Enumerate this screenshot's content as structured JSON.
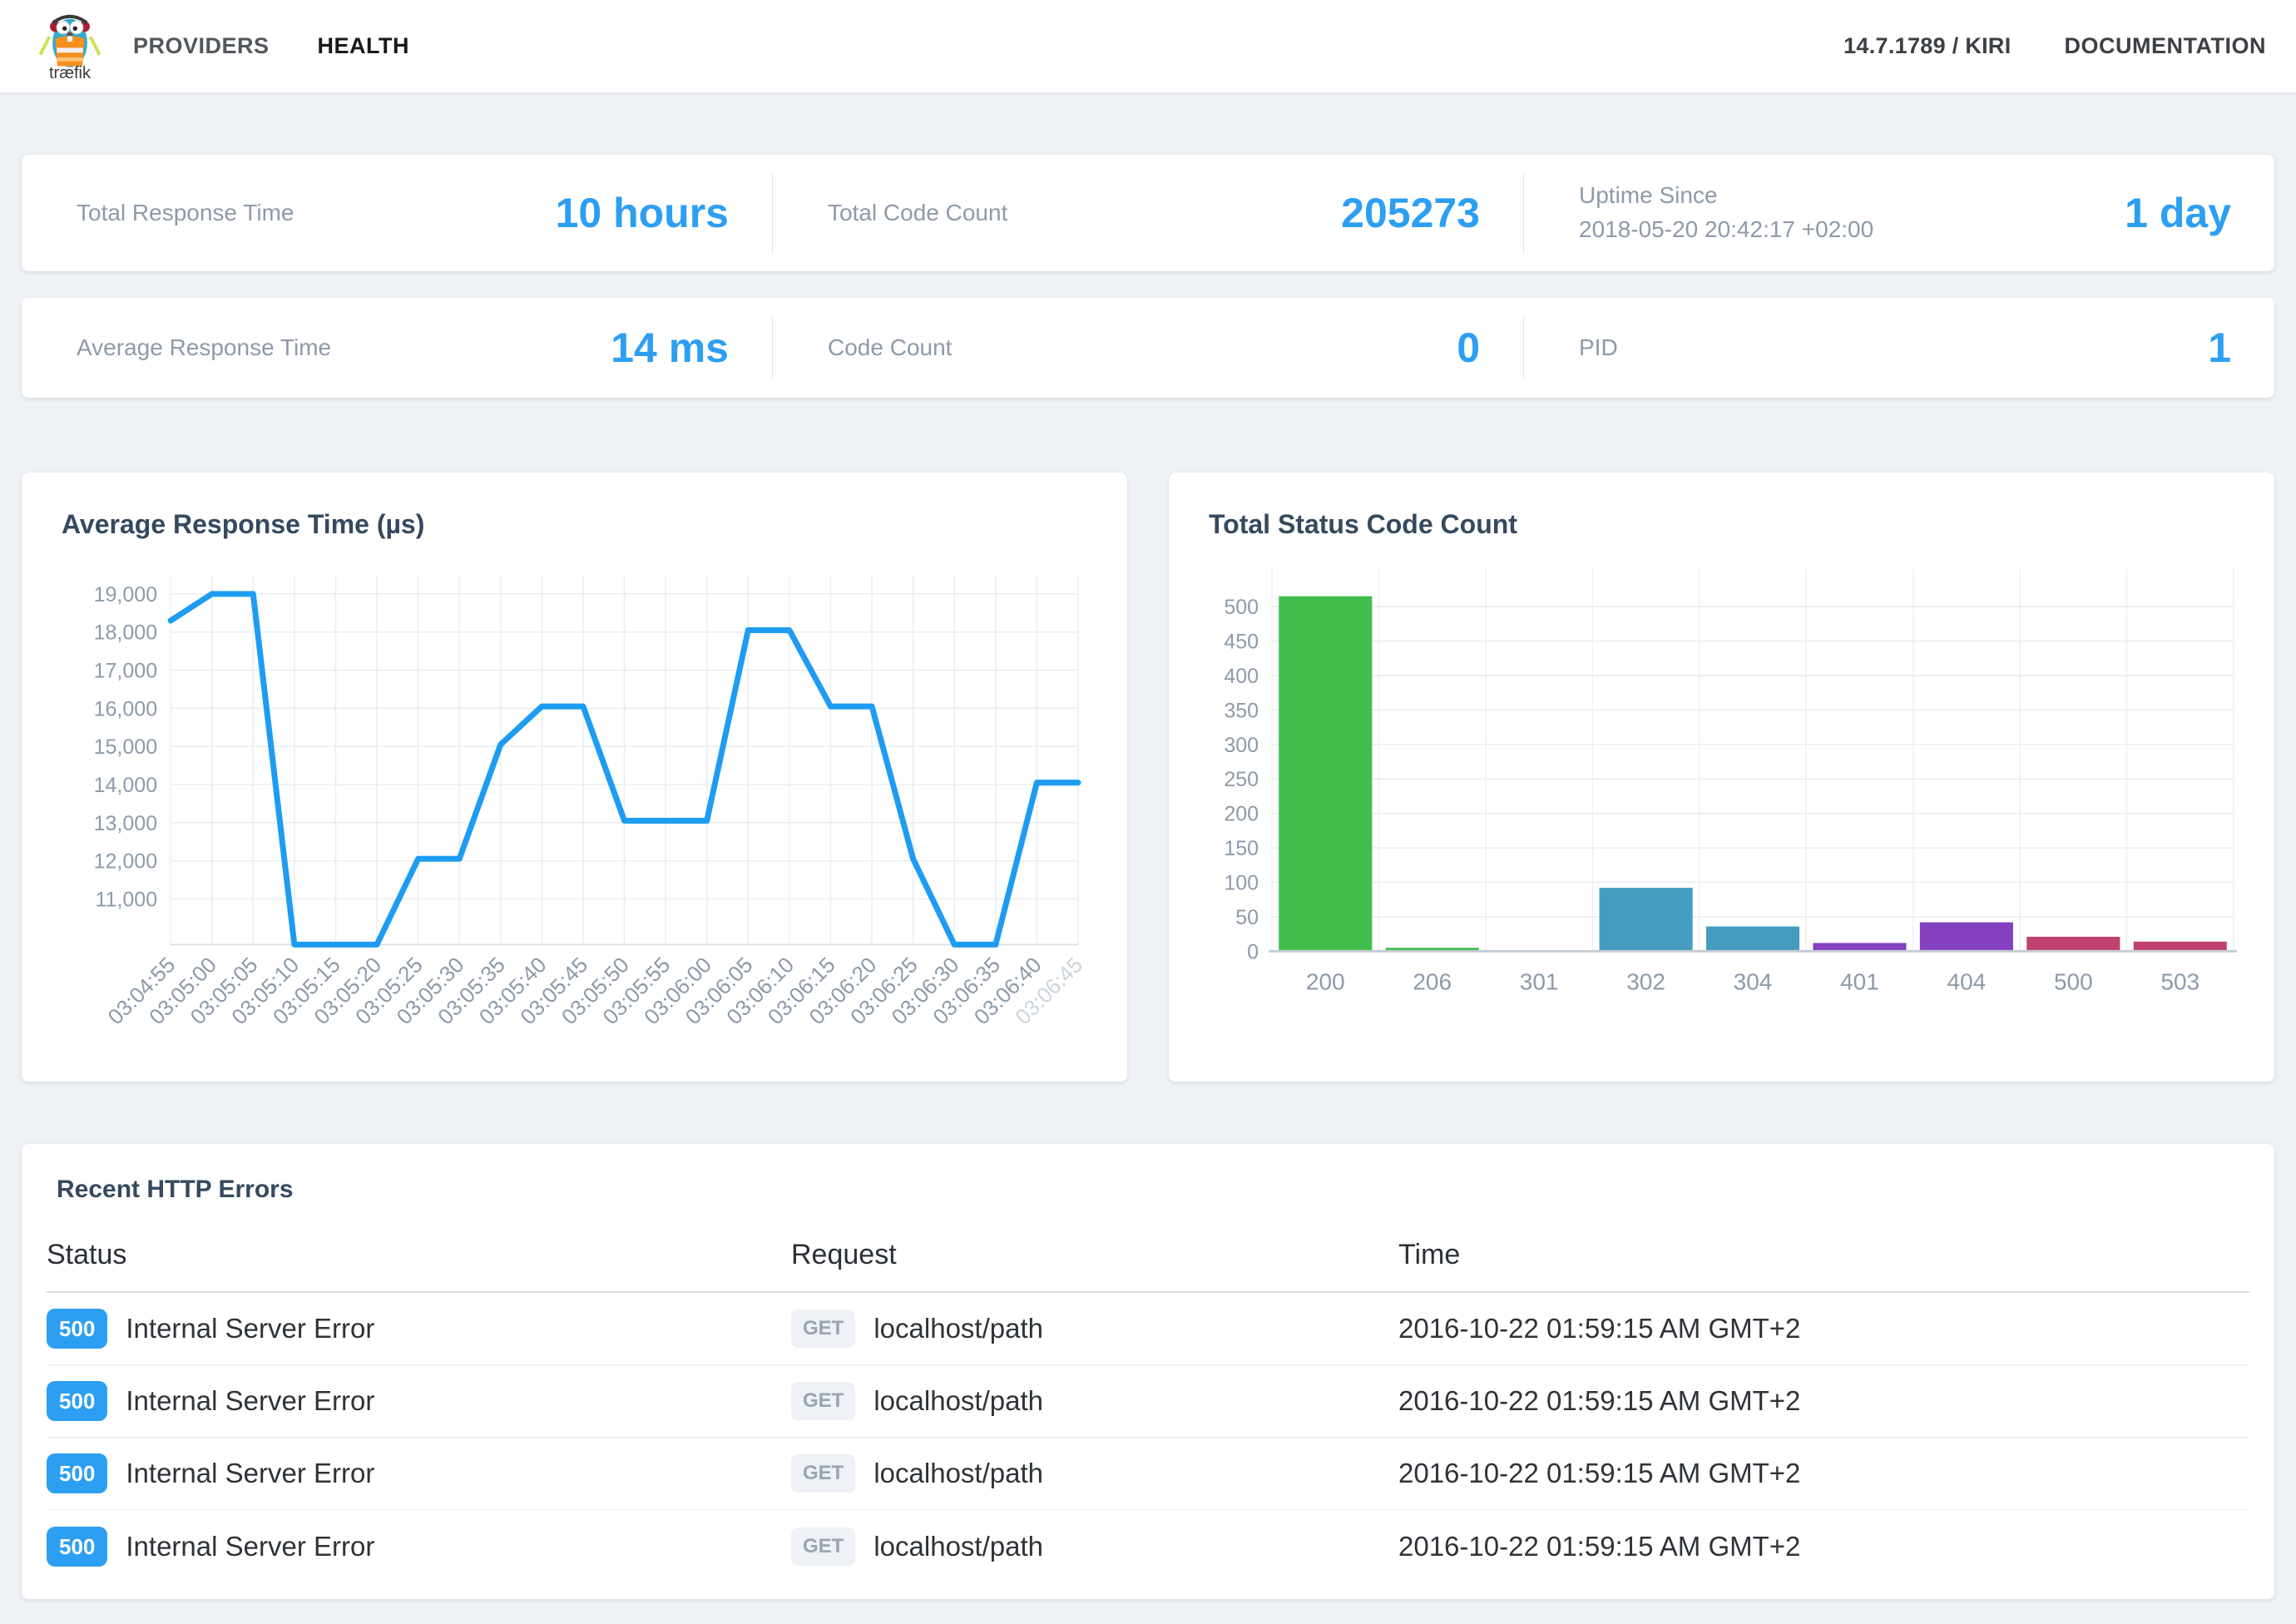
{
  "navbar": {
    "brand": "træfik",
    "items": [
      {
        "label": "PROVIDERS",
        "active": false
      },
      {
        "label": "HEALTH",
        "active": true
      }
    ],
    "version": "14.7.1789 / KIRI",
    "documentation": "DOCUMENTATION"
  },
  "stats": {
    "row1": [
      {
        "label": "Total Response Time",
        "value": "10 hours"
      },
      {
        "label": "Total Code Count",
        "value": "205273"
      },
      {
        "label": "Uptime Since",
        "sublabel": "2018-05-20 20:42:17 +02:00",
        "value": "1 day"
      }
    ],
    "row2": [
      {
        "label": "Average Response Time",
        "value": "14 ms"
      },
      {
        "label": "Code Count",
        "value": "0"
      },
      {
        "label": "PID",
        "value": "1"
      }
    ]
  },
  "chart_data": [
    {
      "type": "line",
      "title": "Average Response Time (µs)",
      "x": [
        "03:04:55",
        "03:05:00",
        "03:05:05",
        "03:05:10",
        "03:05:15",
        "03:05:20",
        "03:05:25",
        "03:05:30",
        "03:05:35",
        "03:05:40",
        "03:05:45",
        "03:05:50",
        "03:05:55",
        "03:06:00",
        "03:06:05",
        "03:06:10",
        "03:06:15",
        "03:06:20",
        "03:06:25",
        "03:06:30",
        "03:06:35",
        "03:06:40",
        "03:06:45"
      ],
      "values": [
        18300,
        19000,
        19000,
        9800,
        9800,
        9800,
        12050,
        12050,
        15050,
        16050,
        16050,
        13050,
        13050,
        13050,
        18050,
        18050,
        16050,
        16050,
        12050,
        9800,
        9800,
        14050,
        14050
      ],
      "ylim": [
        9800,
        19500
      ],
      "y_ticks": [
        {
          "v": 11000,
          "label": "11,000"
        },
        {
          "v": 12000,
          "label": "12,000"
        },
        {
          "v": 13000,
          "label": "13,000"
        },
        {
          "v": 14000,
          "label": "14,000"
        },
        {
          "v": 15000,
          "label": "15,000"
        },
        {
          "v": 16000,
          "label": "16,000"
        },
        {
          "v": 17000,
          "label": "17,000"
        },
        {
          "v": 18000,
          "label": "18,000"
        },
        {
          "v": 19000,
          "label": "19,000"
        }
      ],
      "line_color": "#1e9cf2",
      "tick_color": "#8d9aa9",
      "muted_tick_color": "#ccd3dc",
      "grid": true,
      "legend": "none"
    },
    {
      "type": "bar",
      "title": "Total Status Code Count",
      "categories": [
        "200",
        "206",
        "301",
        "302",
        "304",
        "401",
        "404",
        "500",
        "503"
      ],
      "values": [
        515,
        5,
        0,
        92,
        36,
        12,
        42,
        21,
        14
      ],
      "bar_colors": [
        "#41bd4b",
        "#41bd4b",
        "#449cbe",
        "#449cbe",
        "#449cbe",
        "#8341c0",
        "#8341c0",
        "#bf4170",
        "#bf4170"
      ],
      "ylim": [
        0,
        515
      ],
      "y_tick_step": 50,
      "y_tick_max": 500,
      "tick_color": "#8d9aa9",
      "grid": true,
      "legend": "none"
    }
  ],
  "table": {
    "title": "Recent HTTP Errors",
    "columns": [
      "Status",
      "Request",
      "Time"
    ],
    "rows": [
      {
        "status_code": "500",
        "status_text": "Internal Server Error",
        "method": "GET",
        "path": "localhost/path",
        "time": "2016-10-22 01:59:15 AM GMT+2"
      },
      {
        "status_code": "500",
        "status_text": "Internal Server Error",
        "method": "GET",
        "path": "localhost/path",
        "time": "2016-10-22 01:59:15 AM GMT+2"
      },
      {
        "status_code": "500",
        "status_text": "Internal Server Error",
        "method": "GET",
        "path": "localhost/path",
        "time": "2016-10-22 01:59:15 AM GMT+2"
      },
      {
        "status_code": "500",
        "status_text": "Internal Server Error",
        "method": "GET",
        "path": "localhost/path",
        "time": "2016-10-22 01:59:15 AM GMT+2"
      }
    ]
  },
  "colors": {
    "accent_blue": "#2d9ff2",
    "status_badge": "#2d9ff2",
    "green": "#41bd4b",
    "teal": "#449cbe",
    "purple": "#8341c0",
    "crimson": "#bf4170"
  }
}
